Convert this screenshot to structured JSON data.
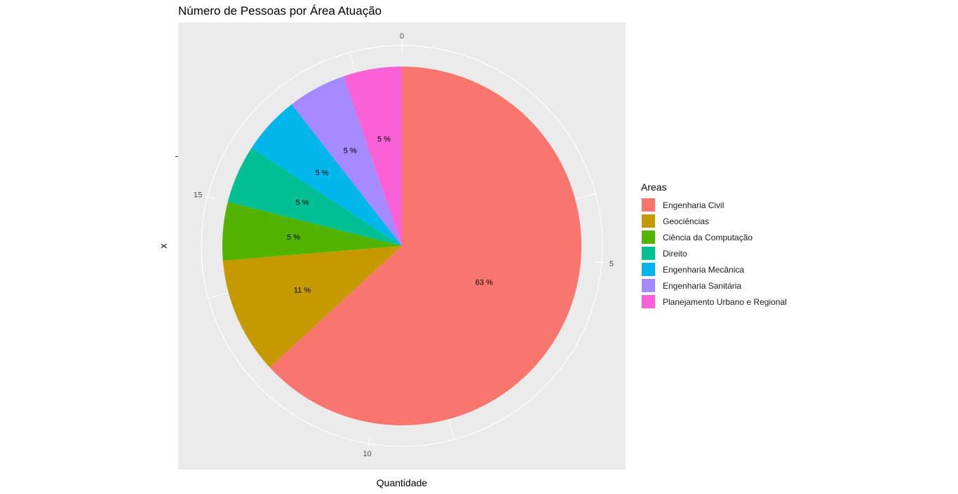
{
  "chart_data": {
    "type": "pie",
    "title": "Número de Pessoas por Área Atuação",
    "xlabel": "Quantidade",
    "ylabel": "x",
    "legend_title": "Areas",
    "legend_position": "right",
    "radial_ticks": [
      "0",
      "5",
      "10",
      "15"
    ],
    "total": 19,
    "categories": [
      "Engenharia Civil",
      "Geociências",
      "Ciência da Computação",
      "Direito",
      "Engenharia Mecânica",
      "Engenharia Sanitária",
      "Planejamento Urbano e Regional"
    ],
    "values": [
      12,
      2,
      1,
      1,
      1,
      1,
      1
    ],
    "labels": [
      "63 %",
      "11 %",
      "5 %",
      "5 %",
      "5 %",
      "5 %",
      "5 %"
    ],
    "colors": [
      "#F8766D",
      "#C49A00",
      "#53B400",
      "#00C094",
      "#00B6EB",
      "#A58AFF",
      "#FB61D7"
    ],
    "grid": true
  }
}
